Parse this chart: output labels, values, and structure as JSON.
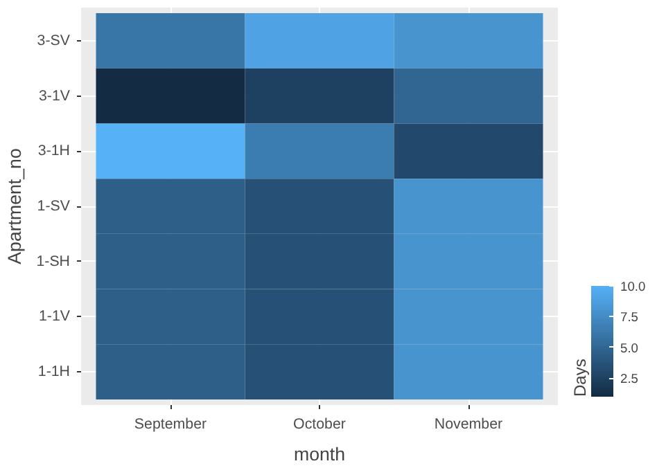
{
  "chart_data": {
    "type": "heatmap",
    "xlabel": "month",
    "ylabel": "Apartment_no",
    "clabel": "Days",
    "categories": [
      "September",
      "October",
      "November"
    ],
    "y_categories": [
      "3-SV",
      "3-1V",
      "3-1H",
      "1-SV",
      "1-SH",
      "1-1V",
      "1-1H"
    ],
    "cells": [
      [
        6,
        9,
        8
      ],
      [
        1,
        2.5,
        5
      ],
      [
        10,
        6.5,
        3
      ],
      [
        4.5,
        3.5,
        8
      ],
      [
        4.5,
        3.5,
        8
      ],
      [
        4.5,
        3.5,
        8
      ],
      [
        4.5,
        3.5,
        8
      ]
    ],
    "clim": [
      1,
      10
    ],
    "cticks": [
      {
        "value": 2.5,
        "label": "2.5"
      },
      {
        "value": 5,
        "label": "5.0"
      },
      {
        "value": 7.5,
        "label": "7.5"
      },
      {
        "value": 10,
        "label": "10.0"
      }
    ],
    "grid": true
  }
}
